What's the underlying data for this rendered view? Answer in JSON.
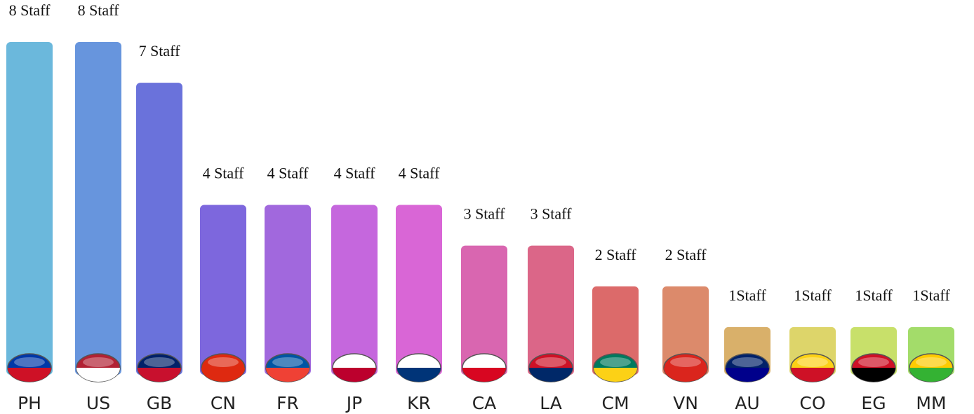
{
  "chart_data": {
    "type": "bar",
    "categories": [
      "PH",
      "US",
      "GB",
      "CN",
      "FR",
      "JP",
      "KR",
      "CA",
      "LA",
      "CM",
      "VN",
      "AU",
      "CO",
      "EG",
      "MM"
    ],
    "values": [
      8,
      8,
      7,
      4,
      4,
      4,
      4,
      3,
      3,
      2,
      2,
      1,
      1,
      1,
      1
    ],
    "value_labels": [
      "8 Staff",
      "8 Staff",
      "7 Staff",
      "4 Staff",
      "4 Staff",
      "4 Staff",
      "4 Staff",
      "3 Staff",
      "3 Staff",
      "2 Staff",
      "2 Staff",
      "1Staff",
      "1Staff",
      "1Staff",
      "1Staff"
    ],
    "colors": [
      "#6bb8dc",
      "#6795dd",
      "#6a72db",
      "#7d67dd",
      "#a168dd",
      "#c567dd",
      "#d966d6",
      "#d966b0",
      "#db6688",
      "#dc6a6a",
      "#dc8a6b",
      "#d9b06a",
      "#ddd56a",
      "#c8e06a",
      "#a3dc6a"
    ],
    "ylim": [
      0,
      8
    ]
  }
}
